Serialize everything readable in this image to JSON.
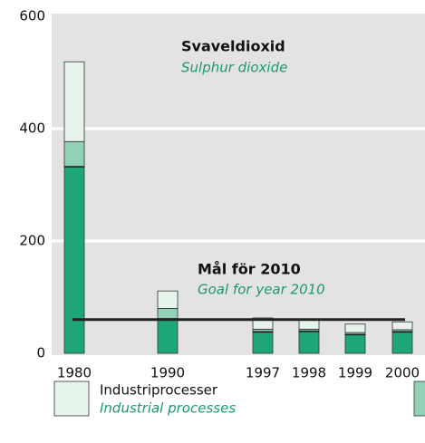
{
  "chart_data": {
    "type": "bar",
    "stacked": true,
    "title": "Svaveldioxid",
    "subtitle": "Sulphur dioxide",
    "categories": [
      "1980",
      "1990",
      "1997",
      "1998",
      "1999",
      "2000"
    ],
    "series": [
      {
        "color": "#1ea67b",
        "values": [
          333,
          62,
          39,
          40,
          34,
          39
        ]
      },
      {
        "color": "#93d1b6",
        "values": [
          44,
          18,
          4,
          3,
          3,
          3
        ]
      },
      {
        "name": "Industriprocesser",
        "name_en": "Industrial processes",
        "color": "#e6f4ec",
        "values": [
          142,
          31,
          20,
          18,
          15,
          14
        ]
      }
    ],
    "goal": {
      "value": 60,
      "label": "Mål för 2010",
      "sublabel": "Goal for year 2010"
    },
    "ylim": [
      0,
      600
    ],
    "yticks": [
      0,
      200,
      400,
      600
    ],
    "grid": true
  }
}
